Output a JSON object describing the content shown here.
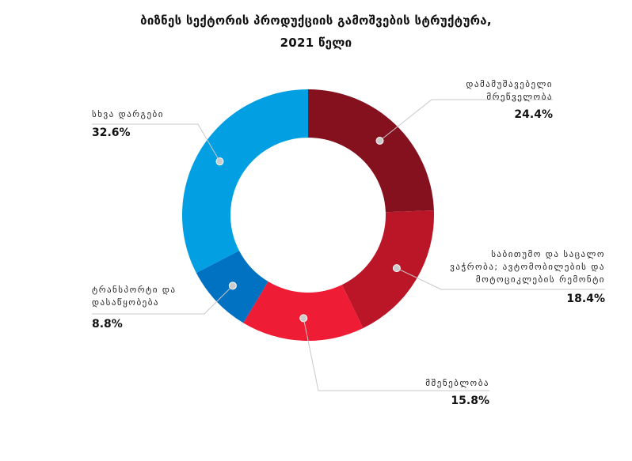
{
  "title_line1": "ბიზნეს სექტორის პროდუქციის გამოშვების სტრუქტურა,",
  "title_line2": "2021 წელი",
  "chart_data": {
    "type": "pie",
    "donut": true,
    "title": "ბიზნეს სექტორის პროდუქციის გამოშვების სტრუქტურა, 2021 წელი",
    "categories": [
      "დამამუშავებელი მრეწველობა",
      "საბითუმო და საცალო ვაჭრობა; ავტომობილების და მოტოციკლების რემონტი",
      "მშენებლობა",
      "ტრანსპორტი და დასაწყობება",
      "სხვა დარგები"
    ],
    "values": [
      24.4,
      18.4,
      15.8,
      8.8,
      32.6
    ],
    "value_labels": [
      "24.4%",
      "18.4%",
      "15.8%",
      "8.8%",
      "32.6%"
    ],
    "colors": [
      "#85111f",
      "#bb1628",
      "#ee1c34",
      "#0171c2",
      "#02a0e3"
    ]
  },
  "labels": {
    "manufacturing": {
      "line1": "დამამუშავებელი",
      "line2": "მრეწველობა",
      "value": "24.4%"
    },
    "trade": {
      "line1": "საბითუმო და საცალო",
      "line2": "ვაჭრობა; ავტომობილების და",
      "line3": "მოტოციკლების რემონტი",
      "value": "18.4%"
    },
    "construction": {
      "line1": "მშენებლობა",
      "value": "15.8%"
    },
    "transport": {
      "line1": "ტრანსპორტი და",
      "line2": "დასაწყობება",
      "value": "8.8%"
    },
    "other": {
      "line1": "სხვა დარგები",
      "value": "32.6%"
    }
  }
}
